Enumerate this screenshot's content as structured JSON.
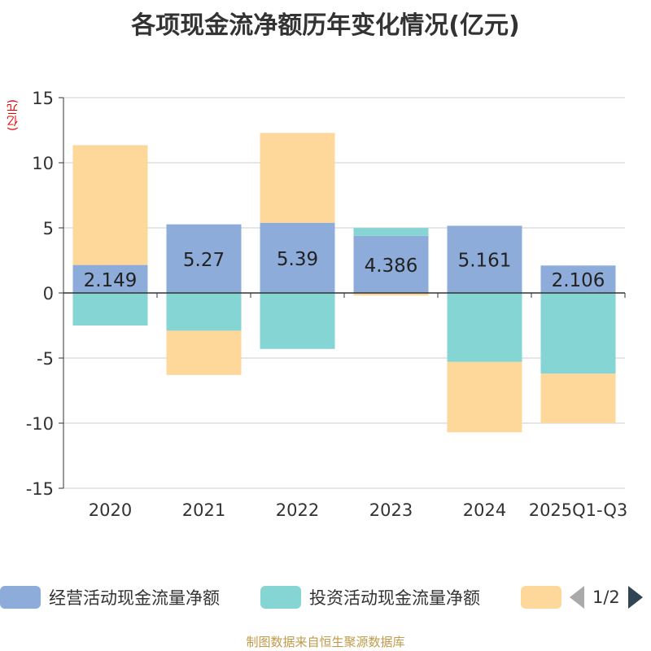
{
  "chart_data": {
    "type": "bar",
    "stacked": true,
    "title": "各项现金流净额历年变化情况(亿元)",
    "ylabel": "(亿元)",
    "ylim": [
      -15,
      15
    ],
    "yticks": [
      -15,
      -10,
      -5,
      0,
      5,
      10,
      15
    ],
    "categories": [
      "2020",
      "2021",
      "2022",
      "2023",
      "2024",
      "2025Q1-Q3"
    ],
    "series": [
      {
        "name": "经营活动现金流量净额",
        "color": "#8eacda",
        "values": [
          2.149,
          5.27,
          5.39,
          4.386,
          5.161,
          2.106
        ],
        "labels": [
          "2.149",
          "5.27",
          "5.39",
          "4.386",
          "5.161",
          "2.106"
        ]
      },
      {
        "name": "投资活动现金流量净额",
        "color": "#85d5d5",
        "values": [
          -2.5,
          -2.9,
          -4.3,
          0.6,
          -5.3,
          -6.2
        ]
      },
      {
        "name": "",
        "color": "#fdd89a",
        "values": [
          9.2,
          -3.4,
          6.9,
          -0.2,
          -5.4,
          -3.8
        ]
      }
    ]
  },
  "legend": {
    "items": [
      {
        "label": "经营活动现金流量净额",
        "color": "#8eacda"
      },
      {
        "label": "投资活动现金流量净额",
        "color": "#85d5d5"
      },
      {
        "label": "",
        "color": "#fdd89a"
      }
    ],
    "page": "1/2"
  },
  "footer": "制图数据来自恒生聚源数据库"
}
